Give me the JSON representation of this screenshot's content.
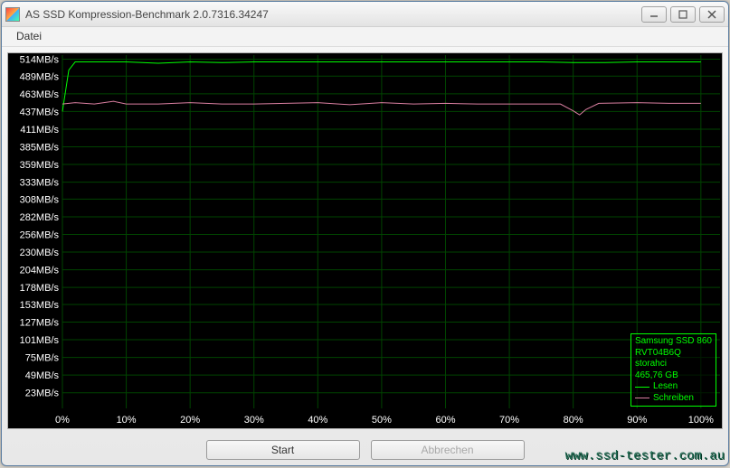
{
  "window": {
    "title": "AS SSD Kompression-Benchmark 2.0.7316.34247"
  },
  "menu": {
    "datei": "Datei"
  },
  "chart": {
    "type": "line",
    "background_color": "#000000",
    "grid_color": "#004400",
    "axis_font_color": "#ffffff",
    "axis_fontsize": 11,
    "y_unit": "MB/s",
    "y_ticks": [
      23,
      49,
      75,
      101,
      127,
      153,
      178,
      204,
      230,
      256,
      282,
      308,
      333,
      359,
      385,
      411,
      437,
      463,
      489,
      514
    ],
    "y_min": 0,
    "y_max": 520,
    "x_ticks_pct": [
      0,
      10,
      20,
      30,
      40,
      50,
      60,
      70,
      80,
      90,
      100
    ],
    "x_min": 0,
    "x_max": 103,
    "series": [
      {
        "name": "Lesen",
        "color": "#00ff00",
        "line_width": 1,
        "points": [
          [
            0,
            437
          ],
          [
            1,
            498
          ],
          [
            2,
            510
          ],
          [
            5,
            510
          ],
          [
            10,
            510
          ],
          [
            15,
            508
          ],
          [
            20,
            510
          ],
          [
            25,
            509
          ],
          [
            30,
            510
          ],
          [
            35,
            510
          ],
          [
            40,
            510
          ],
          [
            45,
            510
          ],
          [
            50,
            510
          ],
          [
            55,
            510
          ],
          [
            60,
            510
          ],
          [
            65,
            510
          ],
          [
            70,
            510
          ],
          [
            75,
            510
          ],
          [
            80,
            509
          ],
          [
            85,
            509
          ],
          [
            90,
            510
          ],
          [
            95,
            510
          ],
          [
            100,
            510
          ]
        ]
      },
      {
        "name": "Schreiben",
        "color": "#d97ea0",
        "line_width": 1,
        "points": [
          [
            0,
            448
          ],
          [
            2,
            450
          ],
          [
            5,
            448
          ],
          [
            8,
            452
          ],
          [
            10,
            448
          ],
          [
            15,
            448
          ],
          [
            20,
            450
          ],
          [
            25,
            448
          ],
          [
            30,
            448
          ],
          [
            35,
            449
          ],
          [
            40,
            450
          ],
          [
            45,
            447
          ],
          [
            50,
            450
          ],
          [
            55,
            448
          ],
          [
            60,
            449
          ],
          [
            65,
            448
          ],
          [
            70,
            448
          ],
          [
            75,
            448
          ],
          [
            78,
            448
          ],
          [
            80,
            438
          ],
          [
            81,
            432
          ],
          [
            82,
            440
          ],
          [
            84,
            449
          ],
          [
            90,
            450
          ],
          [
            95,
            449
          ],
          [
            100,
            449
          ]
        ]
      }
    ]
  },
  "legend": {
    "border_color": "#00ff00",
    "text_color": "#00ff00",
    "fontsize": 10,
    "line1": "Samsung SSD 860",
    "line2": "RVT04B6Q",
    "line3": "storahci",
    "line4": "465,76 GB",
    "read_label": "Lesen",
    "write_label": "Schreiben",
    "read_color": "#00ff00",
    "write_color": "#d97ea0"
  },
  "buttons": {
    "start": "Start",
    "abort": "Abbrechen"
  },
  "watermark": "www.ssd-tester.com.au"
}
